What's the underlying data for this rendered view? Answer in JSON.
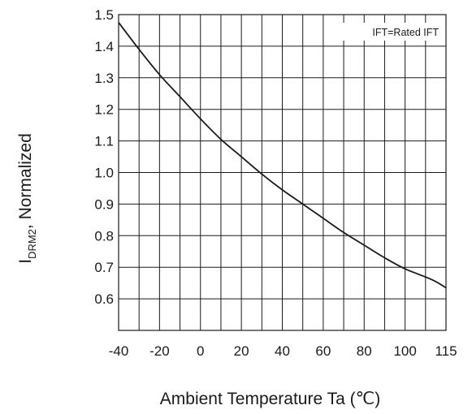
{
  "chart_data": {
    "type": "line",
    "title": "",
    "xlabel": "Ambient Temperature Ta (℃)",
    "ylabel_main": "I",
    "ylabel_sub": "DRM2",
    "ylabel_rest": ", Normalized",
    "annotation": "IFT=Rated IFT",
    "x_ticks": [
      -40,
      -20,
      0,
      20,
      40,
      60,
      80,
      100,
      115
    ],
    "x_tick_labels": [
      "-40",
      "-20",
      "0",
      "20",
      "40",
      "60",
      "80",
      "100",
      "115"
    ],
    "y_ticks": [
      0.6,
      0.7,
      0.8,
      0.9,
      1.0,
      1.1,
      1.2,
      1.3,
      1.4,
      1.5
    ],
    "y_tick_labels": [
      "0.6",
      "0.7",
      "0.8",
      "0.9",
      "1.0",
      "1.1",
      "1.2",
      "1.3",
      "1.4",
      "1.5"
    ],
    "xlim": [
      -40,
      115
    ],
    "ylim": [
      0.5,
      1.5
    ],
    "grid": true,
    "series": [
      {
        "x": [
          -40,
          -30,
          -20,
          -10,
          0,
          10,
          20,
          30,
          40,
          50,
          60,
          70,
          80,
          90,
          100,
          110,
          115
        ],
        "y": [
          1.475,
          1.39,
          1.31,
          1.24,
          1.17,
          1.105,
          1.05,
          0.995,
          0.945,
          0.9,
          0.855,
          0.81,
          0.77,
          0.73,
          0.695,
          0.66,
          0.635
        ],
        "color": "#1a1a1a"
      }
    ]
  }
}
